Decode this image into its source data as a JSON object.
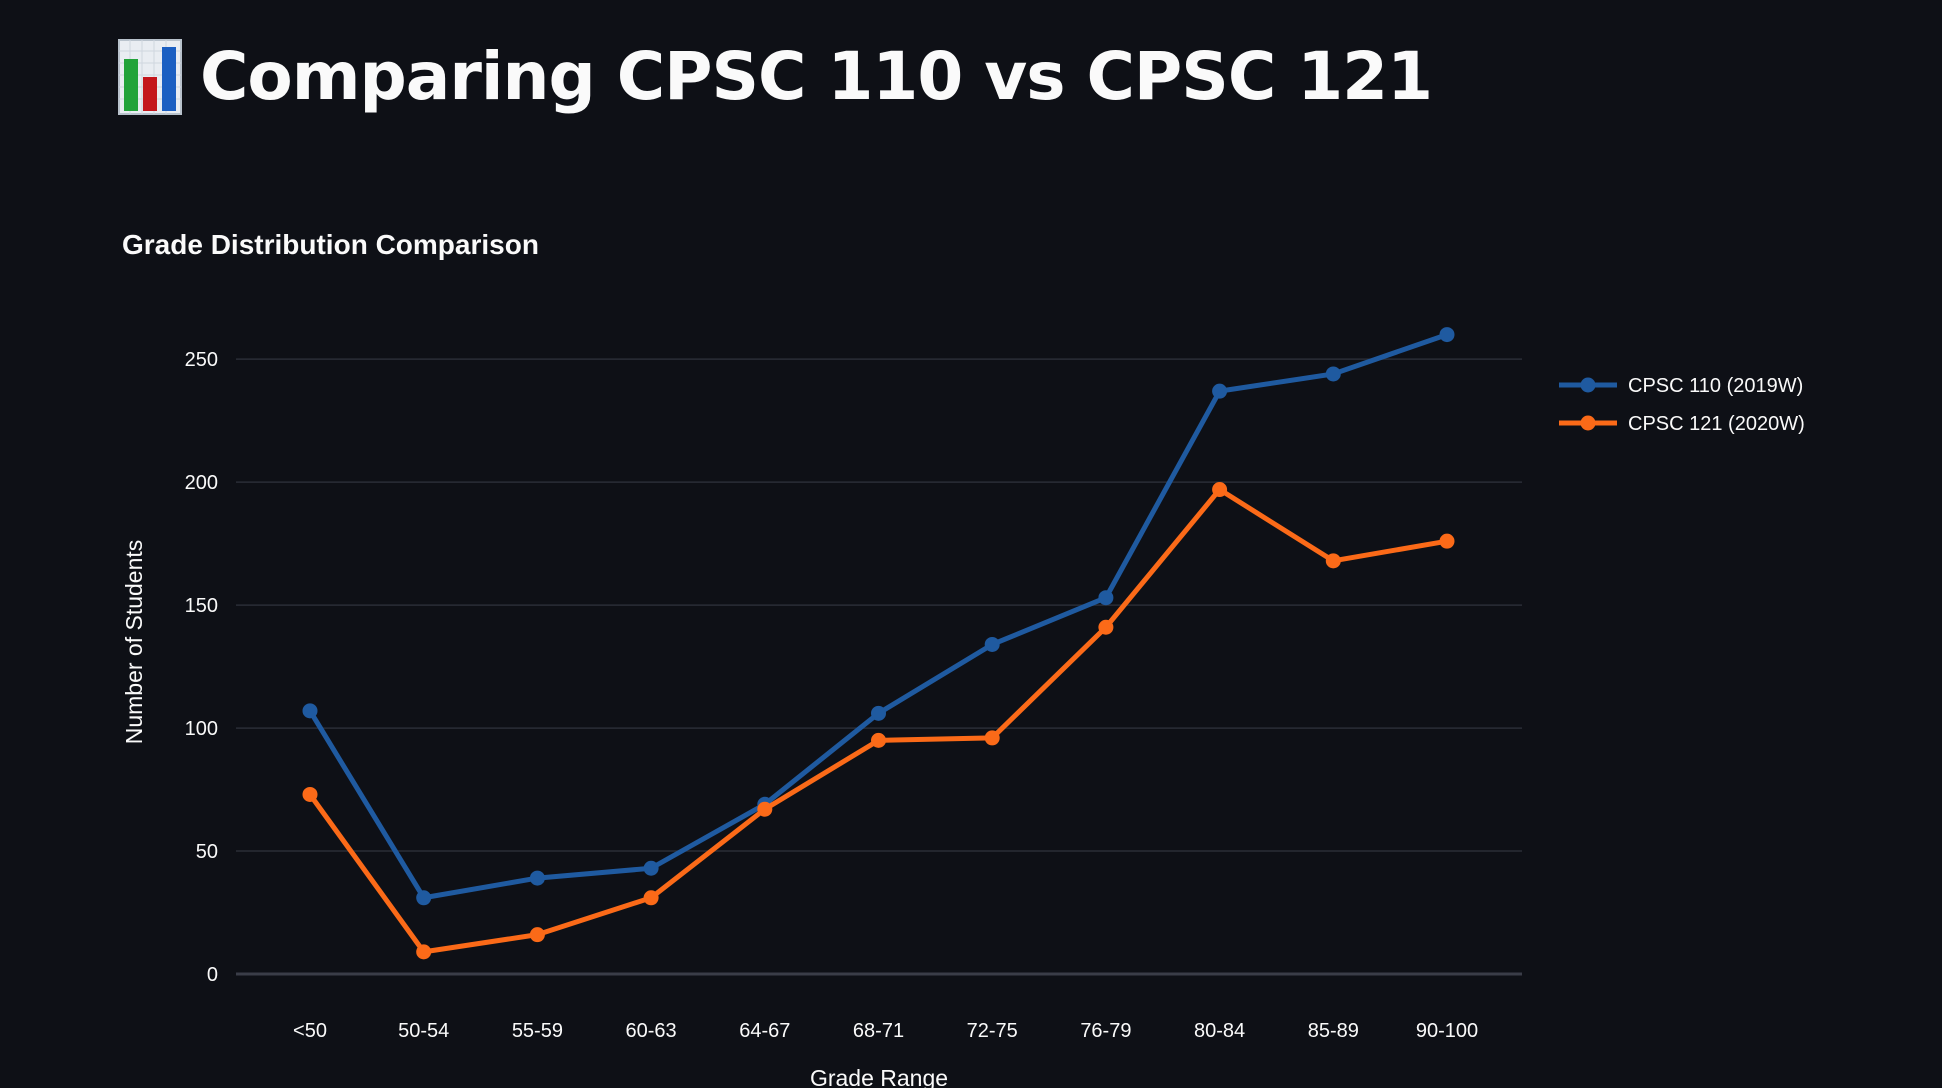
{
  "page": {
    "title": "Comparing CPSC 110 vs CPSC 121",
    "title_icon": "bar-chart-icon"
  },
  "colors": {
    "background": "#0e1016",
    "grid": "#2a2d36",
    "text": "#fafafa",
    "series_1": "#1f5aa0",
    "series_2": "#fb6a18"
  },
  "chart_data": {
    "type": "line",
    "title": "Grade Distribution Comparison",
    "xlabel": "Grade Range",
    "ylabel": "Number of Students",
    "categories": [
      "<50",
      "50-54",
      "55-59",
      "60-63",
      "64-67",
      "68-71",
      "72-75",
      "76-79",
      "80-84",
      "85-89",
      "90-100"
    ],
    "ylim": [
      0,
      270
    ],
    "yticks": [
      0,
      50,
      100,
      150,
      200,
      250
    ],
    "grid": true,
    "legend": "top-right",
    "series": [
      {
        "name": "CPSC 110 (2019W)",
        "color": "#1f5aa0",
        "values": [
          107,
          31,
          39,
          43,
          69,
          106,
          134,
          153,
          237,
          244,
          260
        ]
      },
      {
        "name": "CPSC 121 (2020W)",
        "color": "#fb6a18",
        "values": [
          73,
          9,
          16,
          31,
          67,
          95,
          96,
          141,
          197,
          168,
          176
        ]
      }
    ]
  }
}
